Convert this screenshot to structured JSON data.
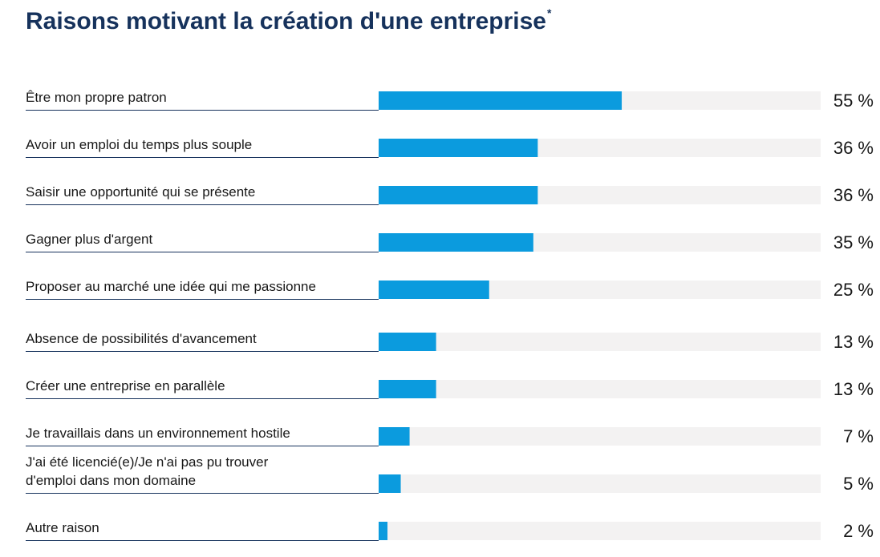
{
  "title": "Raisons motivant la création d'une entreprise",
  "title_mark": "*",
  "colors": {
    "bar": "#0b9bde",
    "track": "#f3f2f2",
    "rule": "#16325c",
    "title": "#16325c",
    "text": "#181818"
  },
  "chart_data": {
    "type": "bar",
    "orientation": "horizontal",
    "title": "Raisons motivant la création d'une entreprise*",
    "unit": "%",
    "xlim": [
      0,
      100
    ],
    "categories": [
      [
        "Être mon propre patron"
      ],
      [
        "Avoir un emploi du temps plus souple"
      ],
      [
        "Saisir une opportunité qui se présente"
      ],
      [
        "Gagner plus d'argent"
      ],
      [
        "Proposer au marché une idée qui me passionne"
      ],
      [
        "Absence de possibilités d'avancement"
      ],
      [
        "Créer une entreprise en parallèle"
      ],
      [
        "Je travaillais dans un environnement hostile"
      ],
      [
        "J'ai été licencié(e)/Je n'ai pas pu trouver",
        "d'emploi dans mon domaine"
      ],
      [
        "Autre raison"
      ]
    ],
    "values": [
      55,
      36,
      36,
      35,
      25,
      13,
      13,
      7,
      5,
      2
    ],
    "value_labels": [
      "55 %",
      "36 %",
      "36 %",
      "35 %",
      "25 %",
      "13 %",
      "13 %",
      "7 %",
      "5 %",
      "2 %"
    ]
  }
}
